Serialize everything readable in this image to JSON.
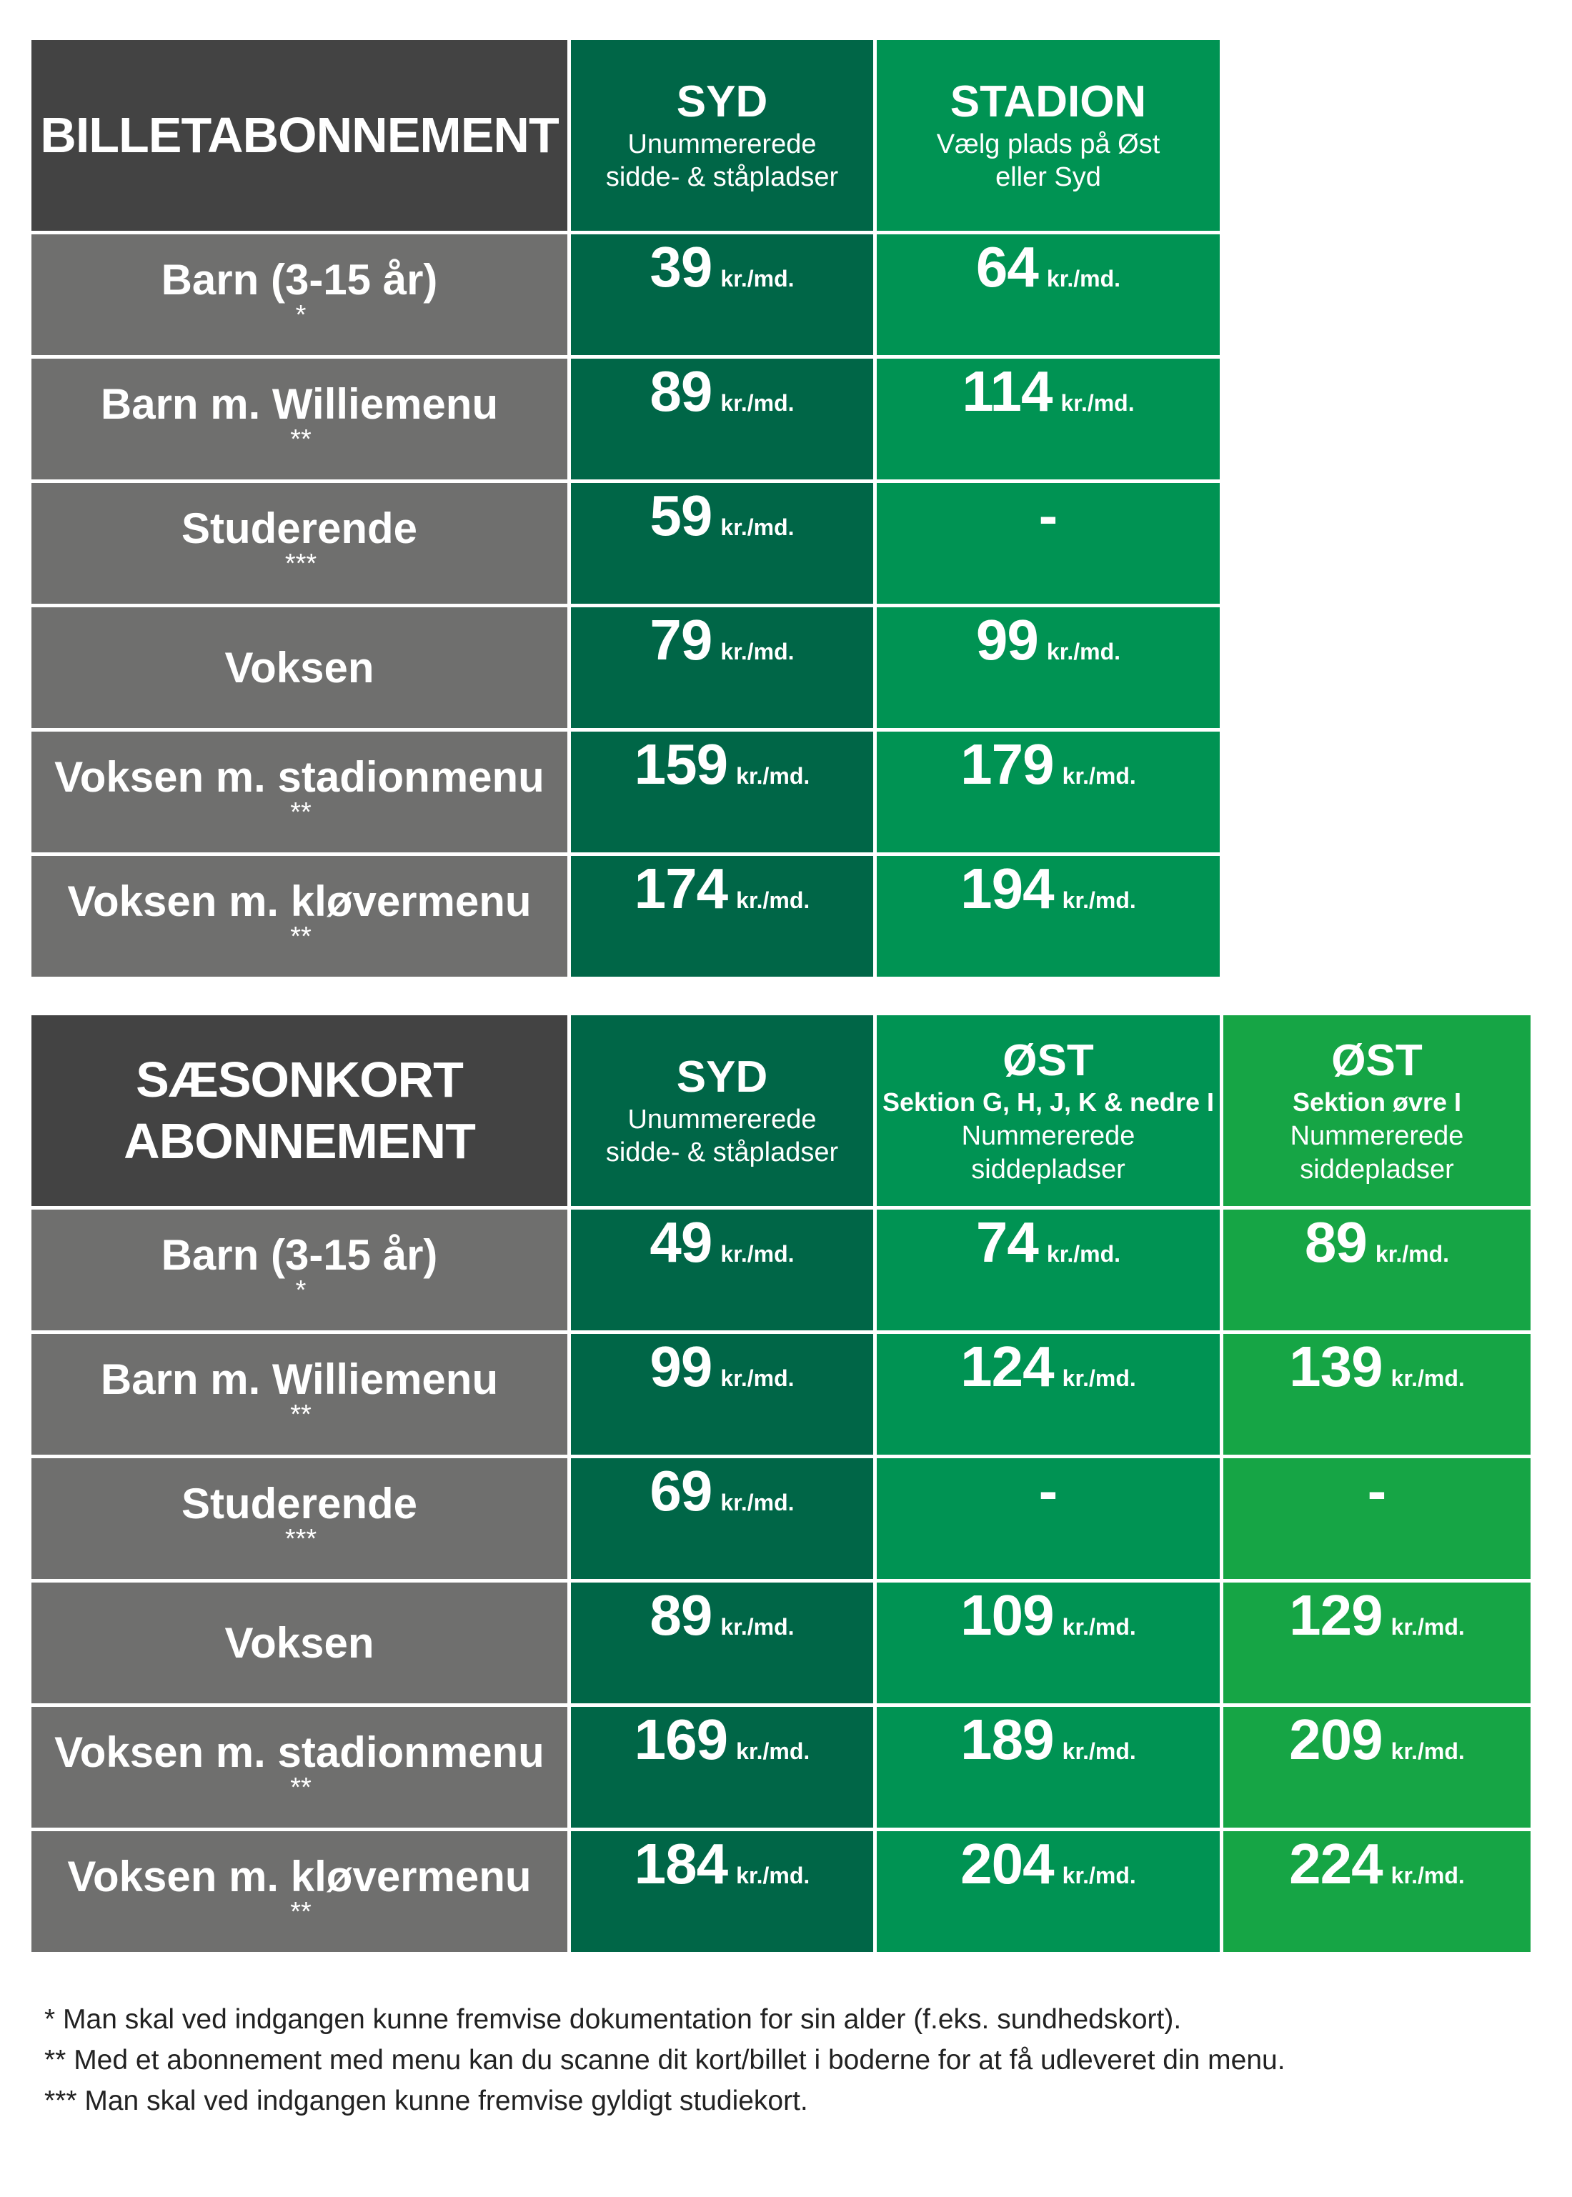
{
  "unit": "kr./md.",
  "colors": {
    "corner": "#434343",
    "row_label": "#6f6f6e",
    "syd": "#006647",
    "stadion_ost": "#009353",
    "ost_upper": "#16a545"
  },
  "billet": {
    "title": "BILLETABONNEMENT",
    "columns": [
      {
        "name": "SYD",
        "section": "",
        "sub": "Unummererede\nsidde- & ståpladser"
      },
      {
        "name": "STADION",
        "section": "",
        "sub": "Vælg plads på Øst\neller Syd"
      }
    ],
    "rows": [
      {
        "label": "Barn (3-15 år)",
        "mark": "*",
        "prices": [
          "39",
          "64"
        ]
      },
      {
        "label": "Barn m. Williemenu",
        "mark": "**",
        "prices": [
          "89",
          "114"
        ]
      },
      {
        "label": "Studerende",
        "mark": "***",
        "prices": [
          "59",
          "-"
        ]
      },
      {
        "label": "Voksen",
        "mark": "",
        "prices": [
          "79",
          "99"
        ]
      },
      {
        "label": "Voksen m. stadionmenu",
        "mark": "**",
        "prices": [
          "159",
          "179"
        ]
      },
      {
        "label": "Voksen m. kløvermenu",
        "mark": "**",
        "prices": [
          "174",
          "194"
        ]
      }
    ]
  },
  "saeson": {
    "title": "SÆSONKORT\nABONNEMENT",
    "columns": [
      {
        "name": "SYD",
        "section": "",
        "sub": "Unummererede\nsidde- & ståpladser"
      },
      {
        "name": "ØST",
        "section": "Sektion G, H, J, K & nedre I",
        "sub": "Nummererede\nsiddepladser"
      },
      {
        "name": "ØST",
        "section": "Sektion øvre I",
        "sub": "Nummererede\nsiddepladser"
      }
    ],
    "rows": [
      {
        "label": "Barn (3-15 år)",
        "mark": "*",
        "prices": [
          "49",
          "74",
          "89"
        ]
      },
      {
        "label": "Barn m. Williemenu",
        "mark": "**",
        "prices": [
          "99",
          "124",
          "139"
        ]
      },
      {
        "label": "Studerende",
        "mark": "***",
        "prices": [
          "69",
          "-",
          "-"
        ]
      },
      {
        "label": "Voksen",
        "mark": "",
        "prices": [
          "89",
          "109",
          "129"
        ]
      },
      {
        "label": "Voksen m. stadionmenu",
        "mark": "**",
        "prices": [
          "169",
          "189",
          "209"
        ]
      },
      {
        "label": "Voksen m. kløvermenu",
        "mark": "**",
        "prices": [
          "184",
          "204",
          "224"
        ]
      }
    ]
  },
  "footnotes": [
    "*  Man skal ved indgangen kunne fremvise dokumentation for sin alder (f.eks. sundhedskort).",
    "** Med et abonnement med menu kan du scanne dit kort/billet i boderne for at få udleveret din menu.",
    "*** Man skal ved indgangen kunne fremvise gyldigt studiekort."
  ]
}
